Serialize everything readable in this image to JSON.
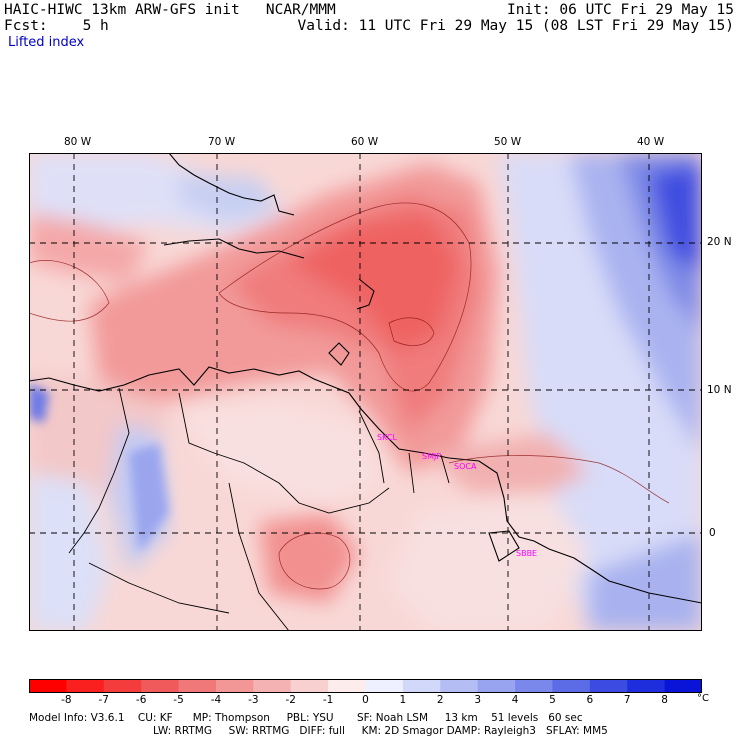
{
  "header": {
    "title": "HAIC-HIWC 13km ARW-GFS init   NCAR/MMM",
    "forecast": "Fcst:    5 h",
    "init": "Init: 06 UTC Fri 29 May 15",
    "valid": "Valid: 11 UTC Fri 29 May 15 (08 LST Fri 29 May 15)",
    "variable": "Lifted index"
  },
  "map": {
    "lon_labels": [
      "80 W",
      "70 W",
      "60 W",
      "50 W",
      "40 W"
    ],
    "lat_labels": [
      "20 N",
      "10 N",
      "0"
    ],
    "stations": [
      "SKCL",
      "SMJP",
      "SOCA",
      "SBBE"
    ],
    "colors": {
      "coast": "#000000",
      "grid": "#000000",
      "station": "#ff00ff"
    }
  },
  "colorbar": {
    "ticks": [
      "-8",
      "-7",
      "-6",
      "-5",
      "-4",
      "-3",
      "-2",
      "-1",
      "0",
      "1",
      "2",
      "3",
      "4",
      "5",
      "6",
      "7",
      "8"
    ],
    "unit": "°C",
    "colors": [
      "#ff0000",
      "#fa2020",
      "#f53c3c",
      "#f05a5a",
      "#f07878",
      "#f29696",
      "#f4b2b2",
      "#f8d0d0",
      "#fcecec",
      "#eef0ff",
      "#d2d8fa",
      "#b4bef5",
      "#98a4f0",
      "#7a88eb",
      "#5c6ce6",
      "#3c4ce2",
      "#1e2edc",
      "#0a14d8"
    ]
  },
  "model_info": {
    "line1": "Model Info: V3.6.1    CU: KF      MP: Thompson     PBL: YSU       SF: Noah LSM     13 km    51 levels   60 sec",
    "line2": "LW: RRTMG     SW: RRTMG   DIFF: full     KM: 2D Smagor DAMP: Rayleigh3   SFLAY: MM5"
  }
}
